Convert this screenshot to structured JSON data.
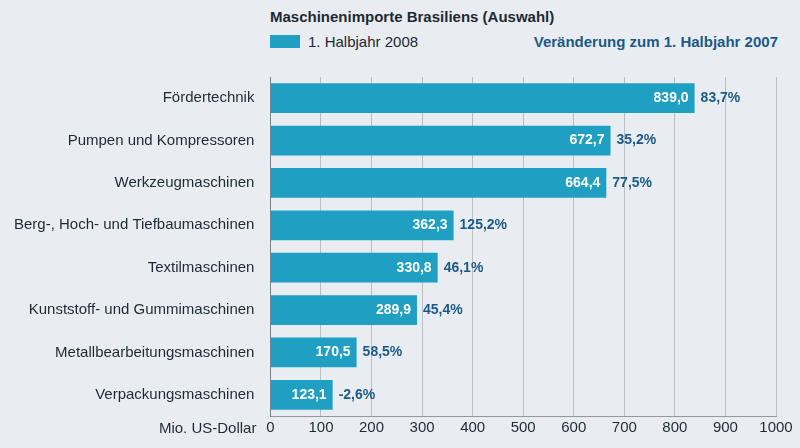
{
  "chart_data": {
    "type": "bar",
    "orientation": "horizontal",
    "title": "Maschinenimporte Brasiliens (Auswahl)",
    "annotation": "Veränderung zum 1. Halbjahr 2007",
    "x_label": "Mio. US-Dollar",
    "categories": [
      "Fördertechnik",
      "Pumpen und Kompressoren",
      "Werkzeugmaschinen",
      "Berg-, Hoch- und Tiefbaumaschinen",
      "Textilmaschinen",
      "Kunststoff- und Gummimaschinen",
      "Metallbearbeitungsmaschinen",
      "Verpackungsmaschinen"
    ],
    "series": [
      {
        "name": "1. Halbjahr 2008",
        "color": "#1f9fc2",
        "values": [
          839.0,
          672.7,
          664.4,
          362.3,
          330.8,
          289.9,
          170.5,
          123.1
        ],
        "value_labels": [
          "839,0",
          "672,7",
          "664,4",
          "362,3",
          "330,8",
          "289,9",
          "170,5",
          "123,1"
        ]
      }
    ],
    "changes": [
      83.7,
      35.2,
      77.5,
      125.2,
      46.1,
      45.4,
      58.5,
      -2.6
    ],
    "change_labels": [
      "83,7%",
      "35,2%",
      "77,5%",
      "125,2%",
      "46,1%",
      "45,4%",
      "58,5%",
      "-2,6%"
    ],
    "xlim": [
      0,
      1000
    ],
    "xticks": [
      0,
      100,
      200,
      300,
      400,
      500,
      600,
      700,
      800,
      900,
      1000
    ],
    "grid": true,
    "legend": "top",
    "data_labels": true
  }
}
